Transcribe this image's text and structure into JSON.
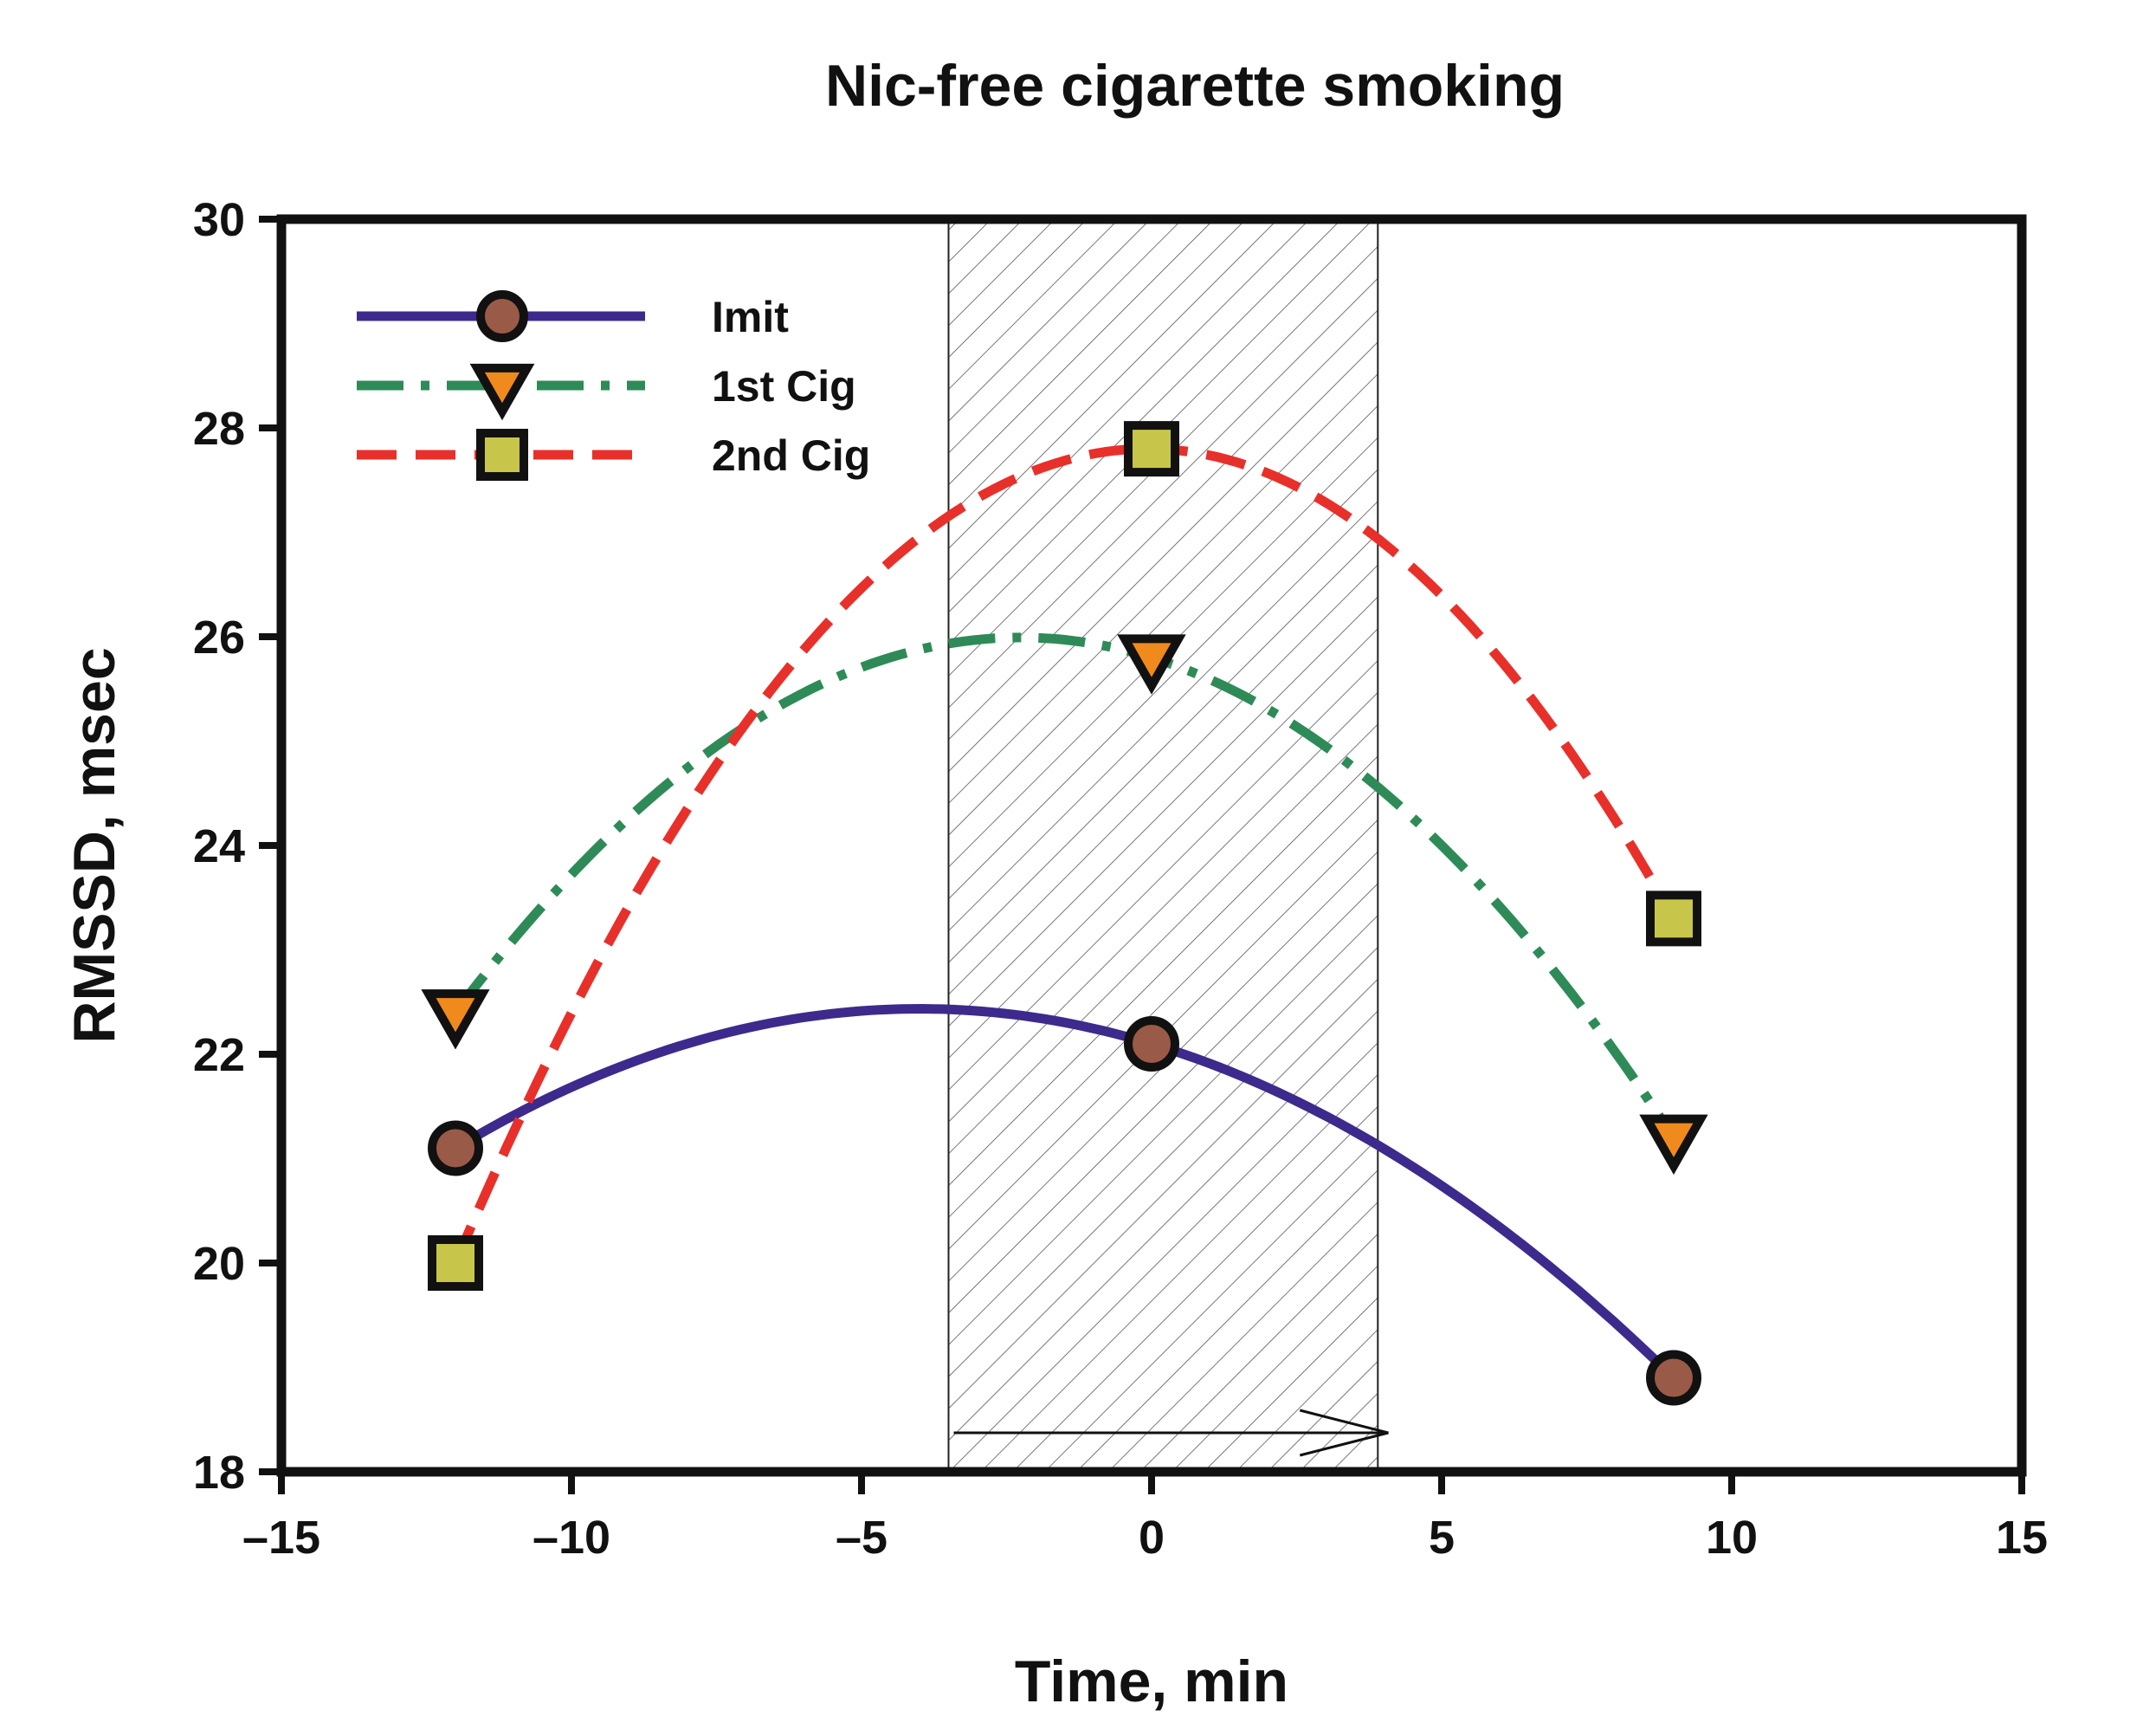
{
  "chart_data": {
    "type": "line",
    "title": "Nic-free cigarette smoking",
    "xlabel": "Time, min",
    "ylabel": "RMSSD, msec",
    "xlim": [
      -15,
      15
    ],
    "ylim": [
      18,
      30
    ],
    "xticks": [
      -15,
      -10,
      -5,
      0,
      5,
      10,
      15
    ],
    "xtick_labels": [
      "–15",
      "–10",
      "–5",
      "0",
      "5",
      "10",
      "15"
    ],
    "yticks": [
      18,
      20,
      22,
      24,
      26,
      28,
      30
    ],
    "ytick_labels": [
      "18",
      "20",
      "22",
      "24",
      "26",
      "28",
      "30"
    ],
    "grid": false,
    "legend_position": "top-left",
    "smoking_period": [
      -3.5,
      3.9
    ],
    "x": [
      -12,
      0,
      9
    ],
    "series": [
      {
        "name": "Imit",
        "values": [
          21.1,
          22.1,
          18.9
        ],
        "line_color": "#3d2a8c",
        "marker": "circle",
        "marker_color": "#9a5a48",
        "dash": "solid"
      },
      {
        "name": "1st Cig",
        "values": [
          22.4,
          25.8,
          21.2
        ],
        "line_color": "#2e8b57",
        "marker": "triangle-down",
        "marker_color": "#f08a1c",
        "dash": "dash-dot"
      },
      {
        "name": "2nd Cig",
        "values": [
          20.0,
          27.8,
          23.3
        ],
        "line_color": "#e8302a",
        "marker": "square",
        "marker_color": "#c8c64a",
        "dash": "dashed"
      }
    ]
  }
}
